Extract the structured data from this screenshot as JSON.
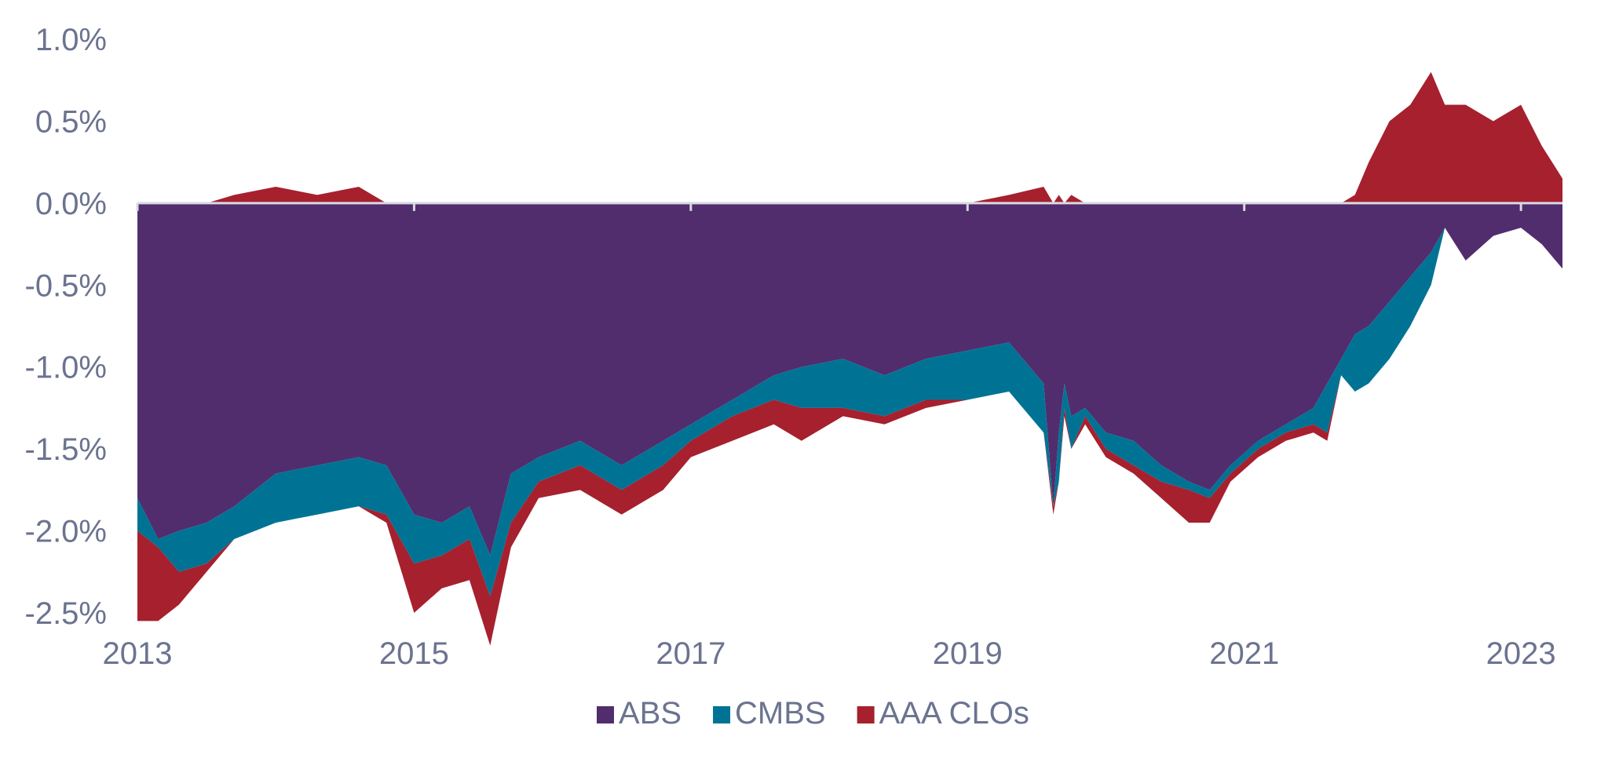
{
  "chart_data": {
    "type": "area",
    "title": "",
    "xlabel": "",
    "ylabel": "",
    "x_range": [
      2013.0,
      2023.3
    ],
    "ylim": [
      -2.5,
      1.0
    ],
    "y_ticks": [
      1.0,
      0.5,
      0.0,
      -0.5,
      -1.0,
      -1.5,
      -2.0,
      -2.5
    ],
    "y_tick_labels": [
      "1.0%",
      "0.5%",
      "0.0%",
      "-0.5%",
      "-1.0%",
      "-1.5%",
      "-2.0%",
      "-2.5%"
    ],
    "x_ticks": [
      2013,
      2015,
      2017,
      2019,
      2021,
      2023
    ],
    "x_tick_labels": [
      "2013",
      "2015",
      "2017",
      "2019",
      "2021",
      "2023"
    ],
    "grid": false,
    "legend_position": "bottom-center",
    "x": [
      2013.0,
      2013.15,
      2013.3,
      2013.5,
      2013.7,
      2014.0,
      2014.3,
      2014.6,
      2014.8,
      2015.0,
      2015.2,
      2015.4,
      2015.55,
      2015.7,
      2015.9,
      2016.2,
      2016.5,
      2016.8,
      2017.0,
      2017.3,
      2017.6,
      2017.8,
      2018.1,
      2018.4,
      2018.7,
      2019.0,
      2019.3,
      2019.55,
      2019.62,
      2019.66,
      2019.7,
      2019.75,
      2019.85,
      2020.0,
      2020.2,
      2020.4,
      2020.6,
      2020.75,
      2020.9,
      2021.1,
      2021.3,
      2021.5,
      2021.6,
      2021.7,
      2021.8,
      2021.9,
      2022.05,
      2022.2,
      2022.35,
      2022.45,
      2022.6,
      2022.8,
      2023.0,
      2023.15,
      2023.3
    ],
    "series": [
      {
        "name": "ABS",
        "color": "#512d6d",
        "values": [
          -1.8,
          -2.05,
          -2.0,
          -1.95,
          -1.85,
          -1.65,
          -1.6,
          -1.55,
          -1.6,
          -1.9,
          -1.95,
          -1.85,
          -2.15,
          -1.65,
          -1.55,
          -1.45,
          -1.6,
          -1.45,
          -1.35,
          -1.2,
          -1.05,
          -1.0,
          -0.95,
          -1.05,
          -0.95,
          -0.9,
          -0.85,
          -1.1,
          -1.85,
          -1.4,
          -1.1,
          -1.3,
          -1.25,
          -1.4,
          -1.45,
          -1.6,
          -1.7,
          -1.75,
          -1.6,
          -1.45,
          -1.35,
          -1.25,
          -1.1,
          -0.95,
          -0.8,
          -0.75,
          -0.6,
          -0.45,
          -0.3,
          -0.15,
          -0.35,
          -0.2,
          -0.15,
          -0.25,
          -0.4
        ]
      },
      {
        "name": "CMBS",
        "color": "#007395",
        "values": [
          -0.2,
          -0.05,
          -0.25,
          -0.25,
          -0.2,
          -0.3,
          -0.3,
          -0.3,
          -0.3,
          -0.3,
          -0.2,
          -0.2,
          -0.25,
          -0.3,
          -0.15,
          -0.15,
          -0.15,
          -0.15,
          -0.1,
          -0.1,
          -0.15,
          -0.25,
          -0.3,
          -0.25,
          -0.25,
          -0.3,
          -0.3,
          -0.3,
          0.0,
          -0.3,
          -0.15,
          -0.2,
          -0.05,
          -0.1,
          -0.15,
          -0.1,
          -0.05,
          -0.05,
          -0.05,
          -0.05,
          -0.05,
          -0.1,
          -0.3,
          -0.1,
          -0.35,
          -0.35,
          -0.35,
          -0.3,
          -0.2,
          0.0,
          0.0,
          0.0,
          0.0,
          0.0,
          0.0
        ]
      },
      {
        "name": "AAA CLOs",
        "color": "#a6202e",
        "values": [
          -0.55,
          -0.45,
          -0.2,
          -0.05,
          0.05,
          0.1,
          0.05,
          0.1,
          -0.05,
          -0.3,
          -0.2,
          -0.25,
          -0.3,
          -0.15,
          -0.1,
          -0.15,
          -0.15,
          -0.15,
          -0.1,
          -0.15,
          -0.15,
          -0.2,
          -0.05,
          -0.05,
          -0.05,
          0.0,
          0.05,
          0.1,
          -0.05,
          0.05,
          -0.05,
          0.05,
          -0.05,
          -0.05,
          -0.05,
          -0.1,
          -0.2,
          -0.15,
          -0.05,
          -0.05,
          -0.05,
          -0.05,
          -0.05,
          0.0,
          0.05,
          0.25,
          0.5,
          0.6,
          0.8,
          0.6,
          0.6,
          0.5,
          0.6,
          0.35,
          0.15
        ]
      }
    ]
  }
}
